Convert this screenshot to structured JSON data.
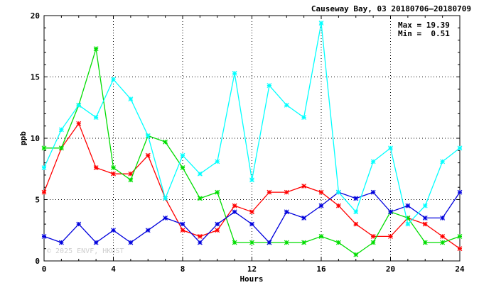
{
  "chart_data": {
    "type": "line",
    "title": "Causeway Bay, 03 20180706–20180709",
    "xlabel": "Hours",
    "ylabel": "ppb",
    "xlim": [
      0,
      24
    ],
    "ylim": [
      0,
      20
    ],
    "x_ticks": [
      0,
      4,
      8,
      12,
      16,
      20,
      24
    ],
    "y_ticks": [
      0,
      5,
      10,
      15,
      20
    ],
    "grid": true,
    "stats": {
      "max_label": "Max = 19.39",
      "min_label": "Min =  0.51"
    },
    "watermark": "© 2025  ENVF, HKUST",
    "x": [
      0,
      1,
      2,
      3,
      4,
      5,
      6,
      7,
      8,
      9,
      10,
      11,
      12,
      13,
      14,
      15,
      16,
      17,
      18,
      19,
      20,
      21,
      22,
      23,
      24
    ],
    "series": [
      {
        "color": "#ff0000",
        "values": [
          5.6,
          9.2,
          11.2,
          7.6,
          7.1,
          7.1,
          8.6,
          5.1,
          2.5,
          2.0,
          2.5,
          4.5,
          4.0,
          5.6,
          5.6,
          6.1,
          5.6,
          4.5,
          3.0,
          2.0,
          2.0,
          3.5,
          3.0,
          2.0,
          1.0
        ]
      },
      {
        "color": "#00dd00",
        "values": [
          9.2,
          9.2,
          12.7,
          17.3,
          7.6,
          6.6,
          10.2,
          9.7,
          7.6,
          5.1,
          5.6,
          1.5,
          1.5,
          1.5,
          1.5,
          1.5,
          2.0,
          1.5,
          0.51,
          1.5,
          4.0,
          3.5,
          1.5,
          1.5,
          2.0
        ]
      },
      {
        "color": "#0000dd",
        "values": [
          2.0,
          1.5,
          3.0,
          1.5,
          2.5,
          1.5,
          2.5,
          3.5,
          3.0,
          1.5,
          3.0,
          4.0,
          3.0,
          1.5,
          4.0,
          3.5,
          4.5,
          5.6,
          5.1,
          5.6,
          4.0,
          4.5,
          3.5,
          3.5,
          5.6
        ]
      },
      {
        "color": "#00ffff",
        "values": [
          7.6,
          10.7,
          12.7,
          11.7,
          14.8,
          13.2,
          10.2,
          5.1,
          8.6,
          7.1,
          8.1,
          15.3,
          6.6,
          14.3,
          12.7,
          11.7,
          19.39,
          5.6,
          4.0,
          8.1,
          9.2,
          3.0,
          4.5,
          8.1,
          9.2
        ]
      }
    ]
  }
}
